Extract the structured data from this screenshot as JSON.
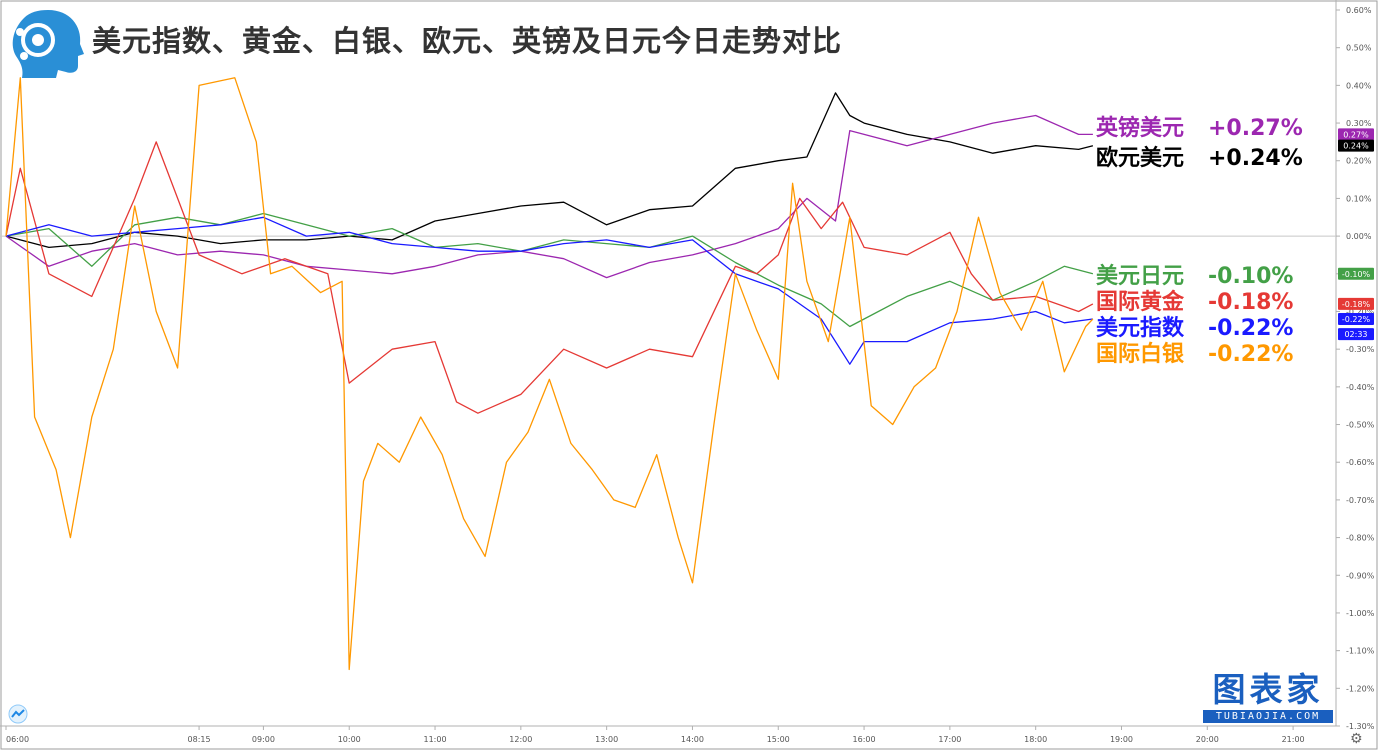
{
  "title": "美元指数、黄金、白银、欧元、英镑及日元今日走势对比",
  "brand": {
    "name": "图表家",
    "domain": "TUBIAOJIA.COM",
    "color": "#1a5fbf"
  },
  "icons": {
    "logo": "tubiaojia-head-logo",
    "corner": "tradingview-icon",
    "settings": "gear-icon"
  },
  "legend": [
    {
      "name": "英镑美元",
      "value": "+0.27%",
      "color": "#9c27b0"
    },
    {
      "name": "欧元美元",
      "value": "+0.24%",
      "color": "#000000"
    },
    {
      "name": "美元日元",
      "value": "-0.10%",
      "color": "#43a047"
    },
    {
      "name": "国际黄金",
      "value": "-0.18%",
      "color": "#e53935"
    },
    {
      "name": "美元指数",
      "value": "-0.22%",
      "color": "#1a1aff"
    },
    {
      "name": "国际白银",
      "value": "-0.22%",
      "color": "#ff9800"
    }
  ],
  "chart_data": {
    "type": "line",
    "title": "美元指数、黄金、白银、欧元、英镑及日元今日走势对比",
    "xlabel": "",
    "ylabel": "",
    "xlim": [
      "06:00",
      "21:30"
    ],
    "ylim": [
      -1.3,
      0.6
    ],
    "grid": false,
    "y_ticks": [
      "0.60%",
      "0.50%",
      "0.40%",
      "0.30%",
      "0.20%",
      "0.10%",
      "0.00%",
      "-0.10%",
      "-0.20%",
      "-0.30%",
      "-0.40%",
      "-0.50%",
      "-0.60%",
      "-0.70%",
      "-0.80%",
      "-0.90%",
      "-1.00%",
      "-1.10%",
      "-1.20%",
      "-1.30%"
    ],
    "x_ticks": [
      "06:00",
      "08:15",
      "09:00",
      "10:00",
      "11:00",
      "12:00",
      "13:00",
      "14:00",
      "15:00",
      "16:00",
      "17:00",
      "18:00",
      "19:00",
      "20:00",
      "21:00"
    ],
    "last_value_badges": [
      {
        "label": "0.27%",
        "value": 0.27,
        "color": "#9c27b0"
      },
      {
        "label": "0.24%",
        "value": 0.24,
        "color": "#000000"
      },
      {
        "label": "-0.10%",
        "value": -0.1,
        "color": "#43a047"
      },
      {
        "label": "-0.18%",
        "value": -0.18,
        "color": "#e53935"
      },
      {
        "label": "-0.22%",
        "value": -0.22,
        "color": "#1a1aff"
      },
      {
        "label": "02:33",
        "value": -0.26,
        "color": "#1a1aff"
      }
    ],
    "series": [
      {
        "name": "欧元美元",
        "color": "#000000",
        "x": [
          "06:00",
          "06:30",
          "07:00",
          "07:30",
          "08:00",
          "08:30",
          "09:00",
          "09:30",
          "10:00",
          "10:30",
          "11:00",
          "11:30",
          "12:00",
          "12:30",
          "13:00",
          "13:30",
          "14:00",
          "14:30",
          "15:00",
          "15:20",
          "15:40",
          "15:50",
          "16:00",
          "16:30",
          "17:00",
          "17:30",
          "18:00",
          "18:30",
          "18:40"
        ],
        "values": [
          0.0,
          -0.03,
          -0.02,
          0.01,
          0.0,
          -0.02,
          -0.01,
          -0.01,
          0.0,
          -0.01,
          0.04,
          0.06,
          0.08,
          0.09,
          0.03,
          0.07,
          0.08,
          0.18,
          0.2,
          0.21,
          0.38,
          0.32,
          0.3,
          0.27,
          0.25,
          0.22,
          0.24,
          0.23,
          0.24
        ]
      },
      {
        "name": "英镑美元",
        "color": "#9c27b0",
        "x": [
          "06:00",
          "06:30",
          "07:00",
          "07:30",
          "08:00",
          "08:30",
          "09:00",
          "09:30",
          "10:00",
          "10:30",
          "11:00",
          "11:30",
          "12:00",
          "12:30",
          "13:00",
          "13:30",
          "14:00",
          "14:30",
          "15:00",
          "15:20",
          "15:40",
          "15:50",
          "16:00",
          "16:30",
          "17:00",
          "17:30",
          "18:00",
          "18:30",
          "18:40"
        ],
        "values": [
          0.0,
          -0.08,
          -0.04,
          -0.02,
          -0.05,
          -0.04,
          -0.05,
          -0.08,
          -0.09,
          -0.1,
          -0.08,
          -0.05,
          -0.04,
          -0.06,
          -0.11,
          -0.07,
          -0.05,
          -0.02,
          0.02,
          0.1,
          0.04,
          0.28,
          0.27,
          0.24,
          0.27,
          0.3,
          0.32,
          0.27,
          0.27
        ]
      },
      {
        "name": "美元日元",
        "color": "#43a047",
        "x": [
          "06:00",
          "06:30",
          "07:00",
          "07:30",
          "08:00",
          "08:30",
          "09:00",
          "09:30",
          "10:00",
          "10:30",
          "11:00",
          "11:30",
          "12:00",
          "12:30",
          "13:00",
          "13:30",
          "14:00",
          "14:30",
          "15:00",
          "15:30",
          "15:50",
          "16:00",
          "16:30",
          "17:00",
          "17:30",
          "18:00",
          "18:20",
          "18:40"
        ],
        "values": [
          0.0,
          0.02,
          -0.08,
          0.03,
          0.05,
          0.03,
          0.06,
          0.03,
          0.0,
          0.02,
          -0.03,
          -0.02,
          -0.04,
          -0.01,
          -0.02,
          -0.03,
          0.0,
          -0.07,
          -0.13,
          -0.18,
          -0.24,
          -0.22,
          -0.16,
          -0.12,
          -0.17,
          -0.12,
          -0.08,
          -0.1
        ]
      },
      {
        "name": "国际黄金",
        "color": "#e53935",
        "x": [
          "06:00",
          "06:10",
          "06:30",
          "07:00",
          "07:30",
          "07:45",
          "08:15",
          "08:45",
          "09:15",
          "09:45",
          "10:00",
          "10:30",
          "11:00",
          "11:15",
          "11:30",
          "12:00",
          "12:30",
          "13:00",
          "13:30",
          "14:00",
          "14:30",
          "14:45",
          "15:00",
          "15:15",
          "15:30",
          "15:45",
          "16:00",
          "16:30",
          "17:00",
          "17:15",
          "17:30",
          "18:00",
          "18:30",
          "18:40"
        ],
        "values": [
          0.0,
          0.18,
          -0.1,
          -0.16,
          0.1,
          0.25,
          -0.05,
          -0.1,
          -0.06,
          -0.1,
          -0.39,
          -0.3,
          -0.28,
          -0.44,
          -0.47,
          -0.42,
          -0.3,
          -0.35,
          -0.3,
          -0.32,
          -0.08,
          -0.1,
          -0.05,
          0.1,
          0.02,
          0.09,
          -0.03,
          -0.05,
          0.01,
          -0.1,
          -0.17,
          -0.16,
          -0.2,
          -0.18
        ]
      },
      {
        "name": "美元指数",
        "color": "#1a1aff",
        "x": [
          "06:00",
          "06:30",
          "07:00",
          "07:30",
          "08:00",
          "08:30",
          "09:00",
          "09:30",
          "10:00",
          "10:30",
          "11:00",
          "11:30",
          "12:00",
          "12:30",
          "13:00",
          "13:30",
          "14:00",
          "14:30",
          "15:00",
          "15:30",
          "15:50",
          "16:00",
          "16:30",
          "17:00",
          "17:30",
          "18:00",
          "18:20",
          "18:40"
        ],
        "values": [
          0.0,
          0.03,
          0.0,
          0.01,
          0.02,
          0.03,
          0.05,
          0.0,
          0.01,
          -0.02,
          -0.03,
          -0.04,
          -0.04,
          -0.02,
          -0.01,
          -0.03,
          -0.01,
          -0.1,
          -0.14,
          -0.22,
          -0.34,
          -0.28,
          -0.28,
          -0.23,
          -0.22,
          -0.2,
          -0.23,
          -0.22
        ]
      },
      {
        "name": "国际白银",
        "color": "#ff9800",
        "x": [
          "06:00",
          "06:10",
          "06:20",
          "06:35",
          "06:45",
          "07:00",
          "07:15",
          "07:30",
          "07:45",
          "08:00",
          "08:15",
          "08:40",
          "08:55",
          "09:05",
          "09:20",
          "09:40",
          "09:55",
          "10:00",
          "10:10",
          "10:20",
          "10:35",
          "10:50",
          "11:05",
          "11:20",
          "11:35",
          "11:50",
          "12:05",
          "12:20",
          "12:35",
          "12:50",
          "13:05",
          "13:20",
          "13:35",
          "13:50",
          "14:00",
          "14:15",
          "14:30",
          "14:45",
          "15:00",
          "15:10",
          "15:20",
          "15:35",
          "15:50",
          "16:05",
          "16:20",
          "16:35",
          "16:50",
          "17:05",
          "17:20",
          "17:35",
          "17:50",
          "18:05",
          "18:20",
          "18:35",
          "18:40"
        ],
        "values": [
          0.0,
          0.42,
          -0.48,
          -0.62,
          -0.8,
          -0.48,
          -0.3,
          0.08,
          -0.2,
          -0.35,
          0.4,
          0.42,
          0.25,
          -0.1,
          -0.08,
          -0.15,
          -0.12,
          -1.15,
          -0.65,
          -0.55,
          -0.6,
          -0.48,
          -0.58,
          -0.75,
          -0.85,
          -0.6,
          -0.52,
          -0.38,
          -0.55,
          -0.62,
          -0.7,
          -0.72,
          -0.58,
          -0.8,
          -0.92,
          -0.5,
          -0.1,
          -0.25,
          -0.38,
          0.14,
          -0.12,
          -0.28,
          0.05,
          -0.45,
          -0.5,
          -0.4,
          -0.35,
          -0.2,
          0.05,
          -0.15,
          -0.25,
          -0.12,
          -0.36,
          -0.24,
          -0.22
        ]
      }
    ]
  }
}
